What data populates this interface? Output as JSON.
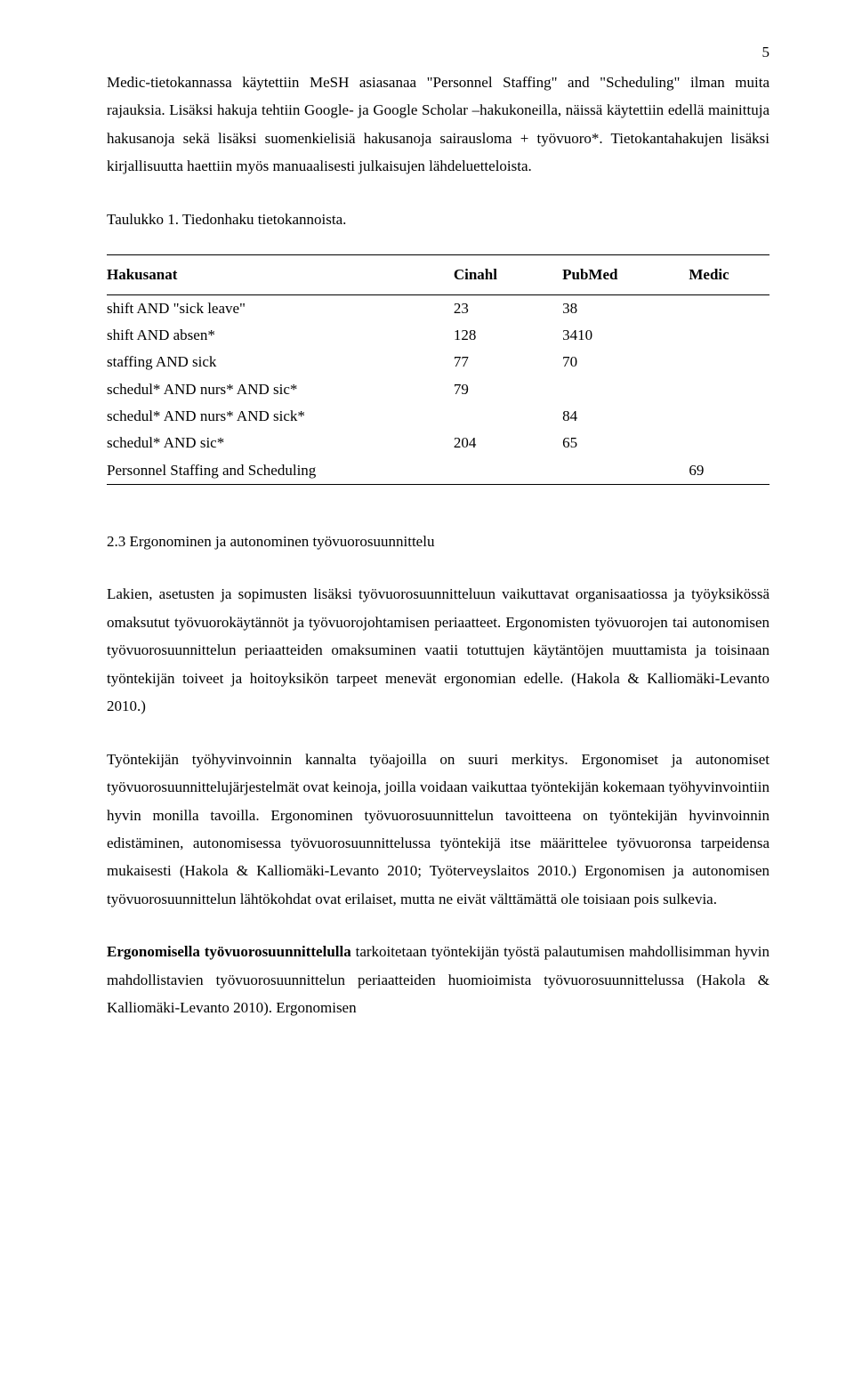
{
  "pageNumber": "5",
  "para1": "Medic-tietokannassa käytettiin MeSH asiasanaa \"Personnel Staffing\" and \"Scheduling\" ilman muita rajauksia. Lisäksi hakuja tehtiin Google- ja Google Scholar –hakukoneilla, näissä käytettiin edellä mainittuja hakusanoja sekä lisäksi suomenkielisiä hakusanoja sairausloma + työvuoro*. Tietokantahakujen lisäksi kirjallisuutta haettiin myös manuaalisesti julkaisujen lähdeluetteloista.",
  "tableCaption": "Taulukko 1. Tiedonhaku tietokannoista.",
  "table": {
    "columns": [
      "Hakusanat",
      "Cinahl",
      "PubMed",
      "Medic"
    ],
    "rows": [
      [
        "shift AND \"sick leave\"",
        "23",
        "38",
        ""
      ],
      [
        "shift AND absen*",
        "128",
        "3410",
        ""
      ],
      [
        "staffing AND sick",
        "77",
        "70",
        ""
      ],
      [
        "schedul* AND nurs* AND sic*",
        "79",
        "",
        ""
      ],
      [
        "schedul* AND nurs* AND sick*",
        "",
        "84",
        ""
      ],
      [
        "schedul* AND sic*",
        "204",
        "65",
        ""
      ],
      [
        "Personnel Staffing and Scheduling",
        "",
        "",
        "69"
      ]
    ]
  },
  "sectionHeading": "2.3 Ergonominen ja autonominen työvuorosuunnittelu",
  "para2": "Lakien, asetusten ja sopimusten lisäksi työvuorosuunnitteluun vaikuttavat organisaatiossa ja työyksikössä omaksutut työvuorokäytännöt ja työvuorojohtamisen periaatteet. Ergonomisten työvuorojen tai autonomisen työvuorosuunnittelun periaatteiden omaksuminen vaatii totuttujen käytäntöjen muuttamista ja toisinaan työntekijän toiveet ja hoitoyksikön tarpeet menevät ergonomian edelle. (Hakola & Kalliomäki-Levanto 2010.)",
  "para3": "Työntekijän työhyvinvoinnin kannalta työajoilla on suuri merkitys. Ergonomiset ja autonomiset työvuorosuunnittelujärjestelmät ovat keinoja, joilla voidaan vaikuttaa työntekijän kokemaan työhyvinvointiin hyvin monilla tavoilla. Ergonominen työvuorosuunnittelun tavoitteena on työntekijän hyvinvoinnin edistäminen, autonomisessa työvuorosuunnittelussa työntekijä itse määrittelee työvuoronsa tarpeidensa mukaisesti (Hakola & Kalliomäki-Levanto 2010; Työterveyslaitos 2010.) Ergonomisen ja autonomisen työvuorosuunnittelun lähtökohdat ovat erilaiset, mutta ne eivät välttämättä ole toisiaan pois sulkevia.",
  "para4_bold": "Ergonomisella työvuorosuunnittelulla",
  "para4_rest": " tarkoitetaan työntekijän työstä palautumisen mahdollisimman hyvin mahdollistavien työvuorosuunnittelun  periaatteiden huomioimista työvuorosuunnittelussa    (Hakola    &    Kalliomäki-Levanto    2010).    Ergonomisen"
}
